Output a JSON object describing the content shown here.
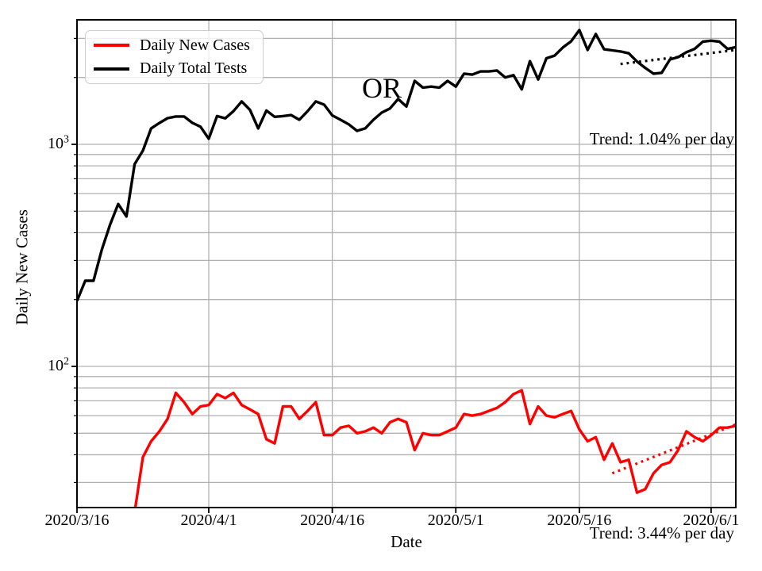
{
  "chart_data": {
    "type": "line",
    "title": "OR",
    "xlabel": "Date",
    "ylabel": "Daily New Cases",
    "y_scale": "log",
    "ylim": [
      23.1,
      3637
    ],
    "grid": true,
    "legend_position": "upper-left",
    "x_unit": "days since 2020/3/16",
    "colors": {
      "cases": "#ff0000",
      "tests": "#000000",
      "grid": "#b0b0b0",
      "axis": "#000000"
    },
    "x_ticks": [
      {
        "label": "2020/3/16",
        "day": 0
      },
      {
        "label": "2020/4/1",
        "day": 16
      },
      {
        "label": "2020/4/16",
        "day": 31
      },
      {
        "label": "2020/5/1",
        "day": 46
      },
      {
        "label": "2020/5/16",
        "day": 61
      },
      {
        "label": "2020/6/1",
        "day": 77
      }
    ],
    "y_ticks": [
      {
        "base": "10",
        "exponent": "3",
        "value": 1000
      },
      {
        "base": "10",
        "exponent": "2",
        "value": 100
      }
    ],
    "series": [
      {
        "name": "Daily New Cases",
        "color": "#ff0000",
        "values": [
          null,
          null,
          null,
          null,
          null,
          null,
          null,
          22,
          39,
          46,
          51,
          58,
          76,
          69,
          61,
          66,
          67,
          75,
          72,
          76,
          67,
          64,
          61,
          47,
          45,
          66,
          66,
          58,
          63,
          69,
          49,
          49,
          53,
          54,
          50,
          51,
          53,
          50,
          56,
          58,
          56,
          42,
          50,
          49,
          49,
          51,
          53,
          61,
          60,
          61,
          63,
          65,
          69,
          75,
          78,
          55,
          66,
          60,
          59,
          61,
          63,
          52,
          46,
          48,
          38,
          45,
          37,
          38,
          27,
          28,
          33,
          36,
          37,
          42,
          51,
          48,
          46,
          49,
          53,
          53,
          54
        ]
      },
      {
        "name": "Daily Total Tests",
        "color": "#000000",
        "values": [
          197,
          243,
          243,
          334,
          433,
          539,
          473,
          814,
          936,
          1180,
          1248,
          1312,
          1335,
          1335,
          1250,
          1200,
          1060,
          1340,
          1310,
          1410,
          1560,
          1430,
          1180,
          1420,
          1330,
          1340,
          1355,
          1290,
          1410,
          1560,
          1510,
          1350,
          1290,
          1230,
          1150,
          1180,
          1290,
          1390,
          1450,
          1600,
          1480,
          1930,
          1800,
          1820,
          1800,
          1930,
          1820,
          2080,
          2060,
          2130,
          2130,
          2150,
          2000,
          2050,
          1770,
          2370,
          1960,
          2440,
          2510,
          2730,
          2910,
          3270,
          2660,
          3140,
          2680,
          2650,
          2620,
          2570,
          2360,
          2210,
          2080,
          2100,
          2410,
          2470,
          2600,
          2690,
          2900,
          2930,
          2900,
          2690,
          2740
        ]
      }
    ],
    "trend_lines": [
      {
        "series": "Daily Total Tests",
        "color": "#000000",
        "rate_per_day_pct": 1.04,
        "start_day": 66,
        "end_day": 80,
        "start_value": 2300,
        "end_value": 2660
      },
      {
        "series": "Daily New Cases",
        "color": "#ff0000",
        "rate_per_day_pct": 3.44,
        "start_day": 65,
        "end_day": 80,
        "start_value": 33,
        "end_value": 54.8
      }
    ],
    "annotations": [
      {
        "text": "Trend: 1.04% per day",
        "anchor": "top-right"
      },
      {
        "text": "Trend: 3.44% per day",
        "anchor": "bottom-right"
      }
    ],
    "legend": {
      "entries": [
        {
          "label": "Daily New Cases",
          "color": "#ff0000"
        },
        {
          "label": "Daily Total Tests",
          "color": "#000000"
        }
      ]
    }
  }
}
